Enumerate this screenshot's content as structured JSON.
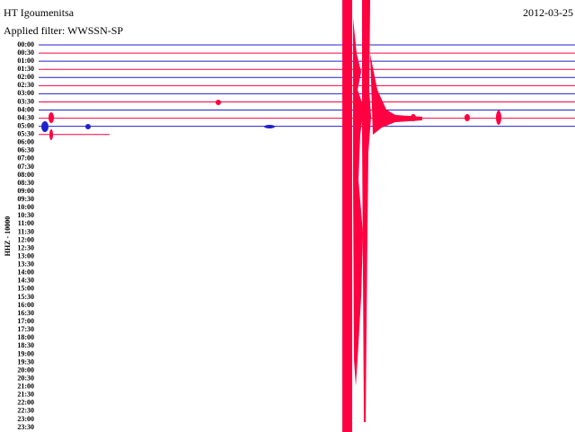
{
  "header": {
    "station": "HT Igoumenitsa",
    "date": "2012-03-25",
    "filter": "Applied filter: WWSSN-SP"
  },
  "axis_label": "HHZ - 10000",
  "rows": [
    "00:00",
    "00:30",
    "01:00",
    "01:30",
    "02:00",
    "02:30",
    "03:00",
    "03:30",
    "04:00",
    "04:30",
    "05:00",
    "05:30",
    "06:00",
    "06:30",
    "07:00",
    "07:30",
    "08:00",
    "08:30",
    "09:00",
    "09:30",
    "10:00",
    "10:30",
    "11:00",
    "11:30",
    "12:00",
    "12:30",
    "13:00",
    "13:30",
    "14:00",
    "14:30",
    "15:00",
    "15:30",
    "16:00",
    "16:30",
    "17:00",
    "17:30",
    "18:00",
    "18:30",
    "19:00",
    "19:30",
    "20:00",
    "20:30",
    "21:00",
    "21:30",
    "22:00",
    "22:30",
    "23:00",
    "23:30"
  ]
}
